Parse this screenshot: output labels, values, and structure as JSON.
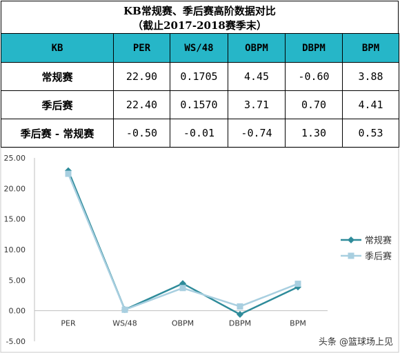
{
  "title": {
    "line1": "KB常规赛、季后赛高阶数据对比",
    "line2": "（截止2017-2018赛季末）"
  },
  "table": {
    "headers": [
      "KB",
      "PER",
      "WS/48",
      "OBPM",
      "DBPM",
      "BPM"
    ],
    "rows": [
      {
        "label": "常规赛",
        "values": [
          "22.90",
          "0.1705",
          "4.45",
          "-0.60",
          "3.88"
        ]
      },
      {
        "label": "季后赛",
        "values": [
          "22.40",
          "0.1570",
          "3.71",
          "0.70",
          "4.41"
        ]
      },
      {
        "label": "季后赛 - 常规赛",
        "values": [
          "-0.50",
          "-0.01",
          "-0.74",
          "1.30",
          "0.53"
        ]
      }
    ]
  },
  "chart_data": {
    "type": "line",
    "categories": [
      "PER",
      "WS/48",
      "OBPM",
      "DBPM",
      "BPM"
    ],
    "series": [
      {
        "name": "常规赛",
        "values": [
          22.9,
          0.1705,
          4.45,
          -0.6,
          3.88
        ],
        "color": "#2e8b9a",
        "marker": "diamond"
      },
      {
        "name": "季后赛",
        "values": [
          22.4,
          0.157,
          3.71,
          0.7,
          4.41
        ],
        "color": "#a8cfe0",
        "marker": "square"
      }
    ],
    "yticks": [
      "25.00",
      "20.00",
      "15.00",
      "10.00",
      "5.00",
      "0.00",
      "-5.00"
    ],
    "ylim": [
      -5,
      25
    ],
    "legend": "right"
  },
  "watermark": "头条 @篮球场上见"
}
